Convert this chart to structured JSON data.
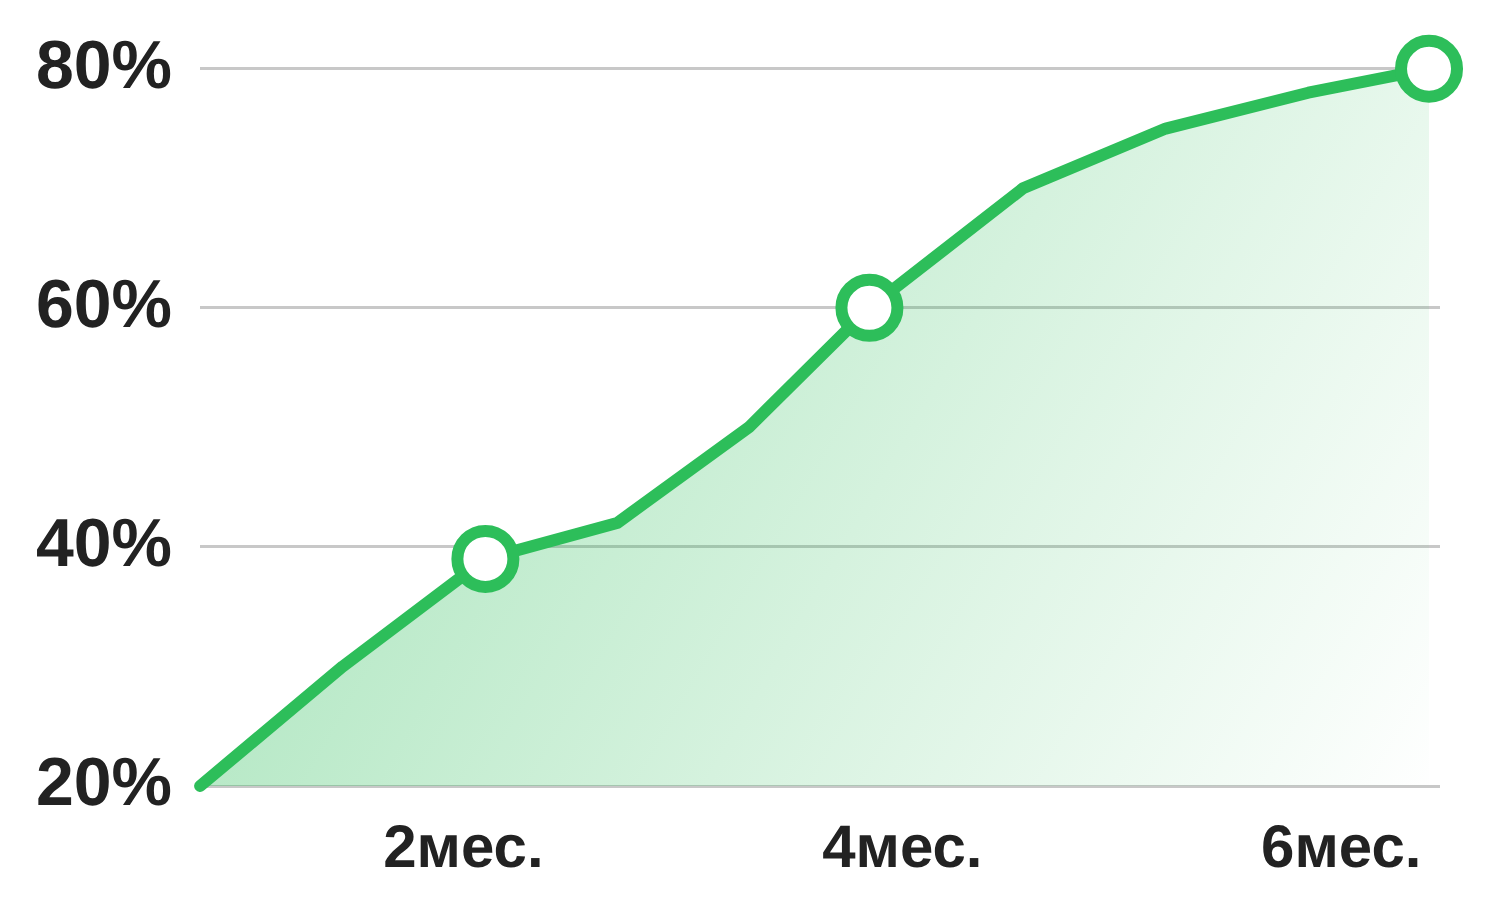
{
  "chart_data": {
    "type": "area",
    "x": [
      0.8,
      1.45,
      2.1,
      2.7,
      3.3,
      3.85,
      4.55,
      5.2,
      5.85,
      6.4
    ],
    "series": [
      {
        "color": "#2dbe5a",
        "values": [
          20,
          30,
          39,
          42,
          50,
          60,
          70,
          75,
          78,
          80
        ],
        "marker": "none"
      },
      {
        "type": "scatter",
        "x": [
          2.1,
          3.85,
          6.4
        ],
        "color": "#2dbe5a",
        "values": [
          39,
          60,
          80
        ],
        "marker": "circle"
      }
    ],
    "xlim": [
      0.8,
      6.45
    ],
    "xticks": [
      {
        "value": 2,
        "label": "2мес."
      },
      {
        "value": 4,
        "label": "4мес."
      },
      {
        "value": 6,
        "label": "6мес."
      }
    ],
    "ylim": [
      20,
      80
    ],
    "yticks": [
      {
        "value": 20,
        "label": "20%"
      },
      {
        "value": 40,
        "label": "40%"
      },
      {
        "value": 60,
        "label": "60%"
      },
      {
        "value": 80,
        "label": "80%"
      }
    ],
    "grid": "y",
    "legend": false
  }
}
